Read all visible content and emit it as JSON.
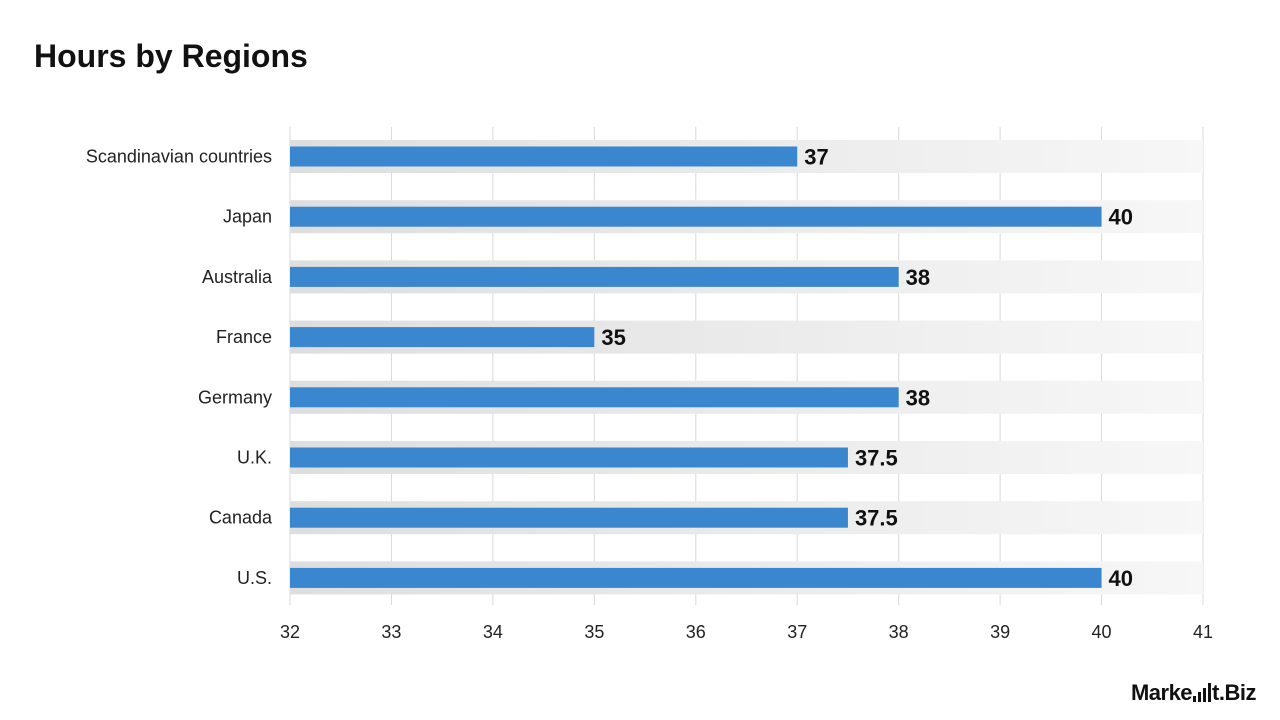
{
  "title": "Hours by Regions",
  "brand": {
    "part1": "Marke",
    "part2": "t.Biz"
  },
  "colors": {
    "bar": "#3a86cf",
    "track": "#ececec",
    "grid": "#d9d9d9"
  },
  "chart_data": {
    "type": "bar",
    "orientation": "horizontal",
    "title": "Hours by Regions",
    "categories": [
      "Scandinavian countries",
      "Japan",
      "Australia",
      "France",
      "Germany",
      "U.K.",
      "Canada",
      "U.S."
    ],
    "values": [
      37,
      40,
      38,
      35,
      38,
      37.5,
      37.5,
      40
    ],
    "value_labels": [
      "37",
      "40",
      "38",
      "35",
      "38",
      "37.5",
      "37.5",
      "40"
    ],
    "xlim": [
      32,
      41
    ],
    "xticks": [
      "32",
      "33",
      "34",
      "35",
      "36",
      "37",
      "38",
      "39",
      "40",
      "41"
    ],
    "grid": true,
    "legend": "none"
  }
}
